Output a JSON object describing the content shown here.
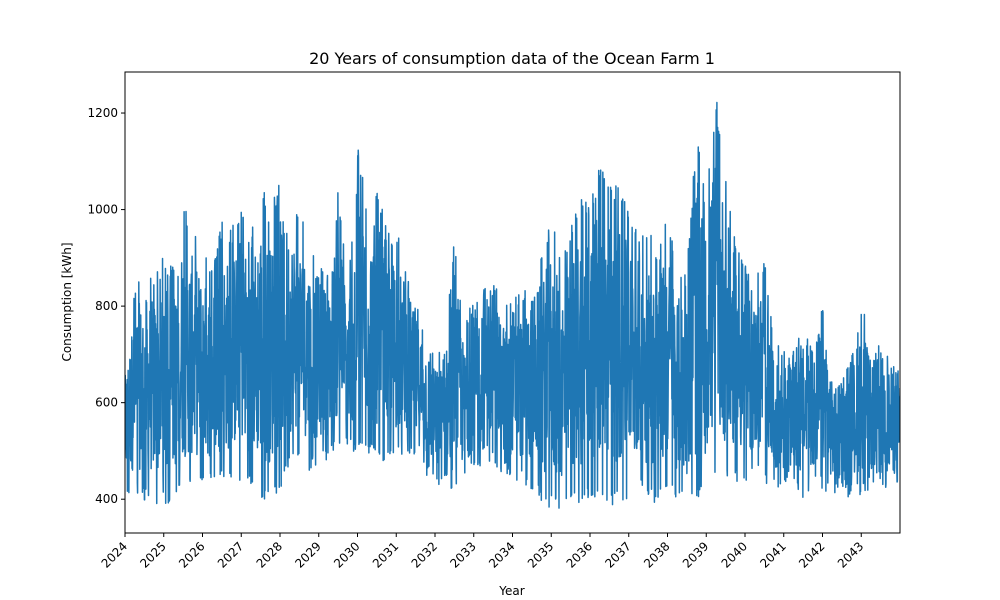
{
  "chart_data": {
    "type": "line",
    "title": "20 Years of consumption data of the Ocean Farm 1",
    "xlabel": "Year",
    "ylabel": "Consumption [kWh]",
    "xlim": [
      2024.0,
      2044.0
    ],
    "ylim": [
      330,
      1285
    ],
    "x_ticks": [
      "2024",
      "2025",
      "2026",
      "2027",
      "2028",
      "2029",
      "2030",
      "2031",
      "2032",
      "2033",
      "2034",
      "2035",
      "2036",
      "2037",
      "2038",
      "2039",
      "2040",
      "2041",
      "2042",
      "2043"
    ],
    "y_ticks": [
      400,
      600,
      800,
      1000,
      1200
    ],
    "grid": false,
    "legend": "none",
    "series": [
      {
        "color": "#1f77b4",
        "x": [
          2024.0,
          2024.25,
          2024.5,
          2024.75,
          2025.0,
          2025.25,
          2025.5,
          2025.75,
          2026.0,
          2026.25,
          2026.5,
          2026.75,
          2027.0,
          2027.25,
          2027.5,
          2027.75,
          2028.0,
          2028.25,
          2028.5,
          2028.75,
          2029.0,
          2029.25,
          2029.5,
          2029.75,
          2030.0,
          2030.25,
          2030.5,
          2030.75,
          2031.0,
          2031.25,
          2031.5,
          2031.75,
          2032.0,
          2032.25,
          2032.5,
          2032.75,
          2033.0,
          2033.25,
          2033.5,
          2033.75,
          2034.0,
          2034.25,
          2034.5,
          2034.75,
          2035.0,
          2035.25,
          2035.5,
          2035.75,
          2036.0,
          2036.25,
          2036.5,
          2036.75,
          2037.0,
          2037.25,
          2037.5,
          2037.75,
          2038.0,
          2038.25,
          2038.5,
          2038.75,
          2039.0,
          2039.25,
          2039.5,
          2039.75,
          2040.0,
          2040.25,
          2040.5,
          2040.75,
          2041.0,
          2041.25,
          2041.5,
          2041.75,
          2042.0,
          2042.25,
          2042.5,
          2042.75,
          2043.0,
          2043.25,
          2043.5,
          2043.75,
          2044.0
        ],
        "y_high": [
          690,
          850,
          880,
          870,
          910,
          880,
          1015,
          970,
          920,
          880,
          975,
          960,
          1020,
          950,
          1060,
          1000,
          1065,
          1030,
          990,
          950,
          915,
          880,
          1045,
          840,
          1140,
          1010,
          1050,
          960,
          955,
          900,
          820,
          770,
          700,
          720,
          950,
          750,
          830,
          915,
          850,
          810,
          850,
          830,
          880,
          910,
          985,
          900,
          960,
          1050,
          1015,
          1090,
          1070,
          1050,
          1000,
          970,
          960,
          915,
          990,
          880,
          875,
          1170,
          1020,
          1240,
          1070,
          960,
          890,
          860,
          900,
          720,
          715,
          710,
          760,
          720,
          860,
          670,
          650,
          700,
          820,
          720,
          740,
          710,
          710
        ],
        "y_low": [
          400,
          410,
          395,
          390,
          385,
          395,
          410,
          420,
          425,
          430,
          435,
          430,
          440,
          430,
          395,
          400,
          420,
          470,
          480,
          460,
          470,
          485,
          500,
          505,
          490,
          495,
          480,
          470,
          480,
          500,
          480,
          450,
          430,
          385,
          400,
          430,
          460,
          440,
          470,
          450,
          440,
          430,
          420,
          390,
          380,
          370,
          380,
          390,
          400,
          410,
          385,
          390,
          400,
          420,
          395,
          390,
          420,
          400,
          390,
          385,
          420,
          430,
          440,
          435,
          430,
          450,
          430,
          420,
          410,
          430,
          400,
          420,
          420,
          410,
          400,
          405,
          410,
          420,
          430,
          415,
          410
        ]
      }
    ]
  }
}
